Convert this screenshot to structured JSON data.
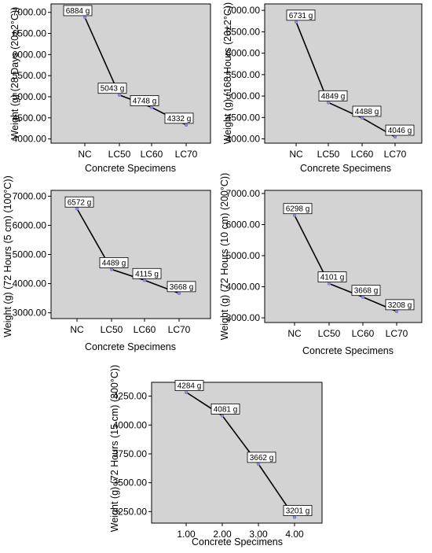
{
  "chart_data": [
    {
      "type": "line",
      "categories": [
        "NC",
        "LC50",
        "LC60",
        "LC70"
      ],
      "values": [
        6884,
        5043,
        4748,
        4332
      ],
      "data_labels": [
        "6884 g",
        "5043 g",
        "4748 g",
        "4332 g"
      ],
      "xlabel": "Concrete Specimens",
      "ylabel": "Weight (g) (28 Days (20±2°C))",
      "ylim": [
        3900,
        7200
      ],
      "yticks": [
        4000,
        4500,
        5000,
        5500,
        6000,
        6500,
        7000
      ],
      "ytick_labels": [
        "4000.00",
        "4500.00",
        "5000.00",
        "5500.00",
        "6000.00",
        "6500.00",
        "7000.00"
      ]
    },
    {
      "type": "line",
      "categories": [
        "NC",
        "LC50",
        "LC60",
        "LC70"
      ],
      "values": [
        6731,
        4849,
        4488,
        4046
      ],
      "data_labels": [
        "6731 g",
        "4849 g",
        "4488 g",
        "4046 g"
      ],
      "xlabel": "Concrete Specimens",
      "ylabel": "Weight (g) (168 Hours (20±2°C))",
      "ylim": [
        3900,
        7150
      ],
      "yticks": [
        4000,
        4500,
        5000,
        5500,
        6000,
        6500,
        7000
      ],
      "ytick_labels": [
        "4000.00",
        "4500.00",
        "5000.00",
        "5500.00",
        "6000.00",
        "6500.00",
        "7000.00"
      ]
    },
    {
      "type": "line",
      "categories": [
        "NC",
        "LC50",
        "LC60",
        "LC70"
      ],
      "values": [
        6572,
        4489,
        4115,
        3668
      ],
      "data_labels": [
        "6572 g",
        "4489 g",
        "4115 g",
        "3668 g"
      ],
      "xlabel": "Concrete Specimens",
      "ylabel": "Weight (g) (72 Hours (5 cm) (100°C))",
      "ylim": [
        2800,
        7200
      ],
      "yticks": [
        3000,
        4000,
        5000,
        6000,
        7000
      ],
      "ytick_labels": [
        "3000.00",
        "4000.00",
        "5000.00",
        "6000.00",
        "7000.00"
      ]
    },
    {
      "type": "line",
      "categories": [
        "NC",
        "LC50",
        "LC60",
        "LC70"
      ],
      "values": [
        6298,
        4101,
        3668,
        3208
      ],
      "data_labels": [
        "6298 g",
        "4101 g",
        "3668 g",
        "3208 g"
      ],
      "xlabel": "Concrete Specimens",
      "ylabel": "Weight (g) (72 Hours (10 cm) (200°C))",
      "ylim": [
        2850,
        7100
      ],
      "yticks": [
        3000,
        4000,
        5000,
        6000,
        7000
      ],
      "ytick_labels": [
        "3000.00",
        "4000.00",
        "5000.00",
        "6000.00",
        "7000.00"
      ]
    },
    {
      "type": "line",
      "categories": [
        "1.00",
        "2.00",
        "3.00",
        "4.00"
      ],
      "values": [
        4284,
        4081,
        3662,
        3201
      ],
      "data_labels": [
        "4284 g",
        "4081 g",
        "3662 g",
        "3201 g"
      ],
      "xlabel": "Concrete Specimens",
      "ylabel": "Weight (g) (72 Hours (15 cm) (300°C))",
      "ylim": [
        3150,
        4370
      ],
      "yticks": [
        3250,
        3500,
        3750,
        4000,
        4250
      ],
      "ytick_labels": [
        "3250.00",
        "3500.00",
        "3750.00",
        "4000.00",
        "4250.00"
      ]
    }
  ],
  "colors": {
    "plot_background": "#d3d3d3",
    "line": "#000000",
    "marker": "#8a8fd8",
    "label_box": "#ffffff"
  }
}
